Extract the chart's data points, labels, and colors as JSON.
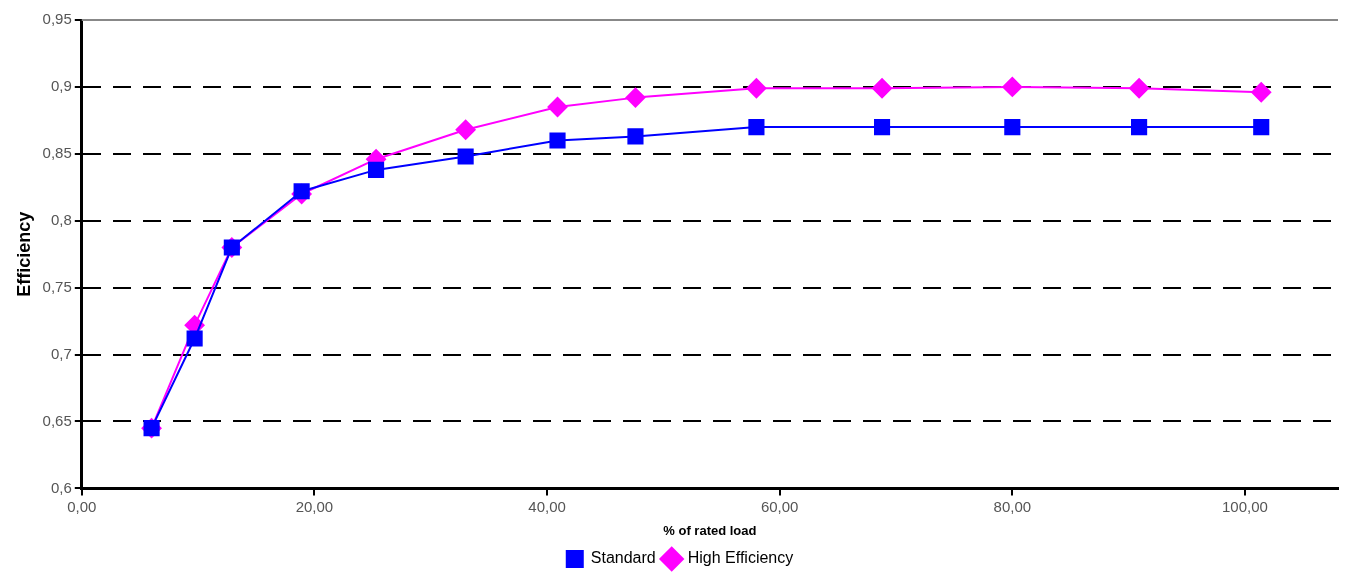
{
  "chart_data": {
    "type": "line",
    "xlabel": "% of rated load",
    "ylabel": "Efficiency",
    "xlim": [
      0,
      108
    ],
    "ylim": [
      0.6,
      0.95
    ],
    "xticks": [
      {
        "value": 0,
        "label": "0,00"
      },
      {
        "value": 20,
        "label": "20,00"
      },
      {
        "value": 40,
        "label": "40,00"
      },
      {
        "value": 60,
        "label": "60,00"
      },
      {
        "value": 80,
        "label": "80,00"
      },
      {
        "value": 100,
        "label": "100,00"
      }
    ],
    "yticks": [
      {
        "value": 0.6,
        "label": "0,6"
      },
      {
        "value": 0.65,
        "label": "0,65"
      },
      {
        "value": 0.7,
        "label": "0,7"
      },
      {
        "value": 0.75,
        "label": "0,75"
      },
      {
        "value": 0.8,
        "label": "0,8"
      },
      {
        "value": 0.85,
        "label": "0,85"
      },
      {
        "value": 0.9,
        "label": "0,9"
      },
      {
        "value": 0.95,
        "label": "0,95"
      }
    ],
    "x": [
      6.0,
      9.7,
      12.9,
      18.9,
      25.3,
      33.0,
      40.9,
      47.6,
      58.0,
      68.8,
      80.0,
      90.9,
      101.4
    ],
    "series": [
      {
        "name": "High Efficiency",
        "color": "#ff00ff",
        "marker": "diamond",
        "values": [
          0.645,
          0.722,
          0.78,
          0.82,
          0.846,
          0.868,
          0.885,
          0.892,
          0.899,
          0.899,
          0.9,
          0.899,
          0.896
        ]
      },
      {
        "name": "Standard",
        "color": "#0000ff",
        "marker": "square",
        "values": [
          0.645,
          0.712,
          0.78,
          0.822,
          0.838,
          0.848,
          0.86,
          0.863,
          0.87,
          0.87,
          0.87,
          0.87,
          0.87
        ]
      }
    ],
    "grid": "y",
    "line_style": "solid",
    "legend": "bottom"
  }
}
